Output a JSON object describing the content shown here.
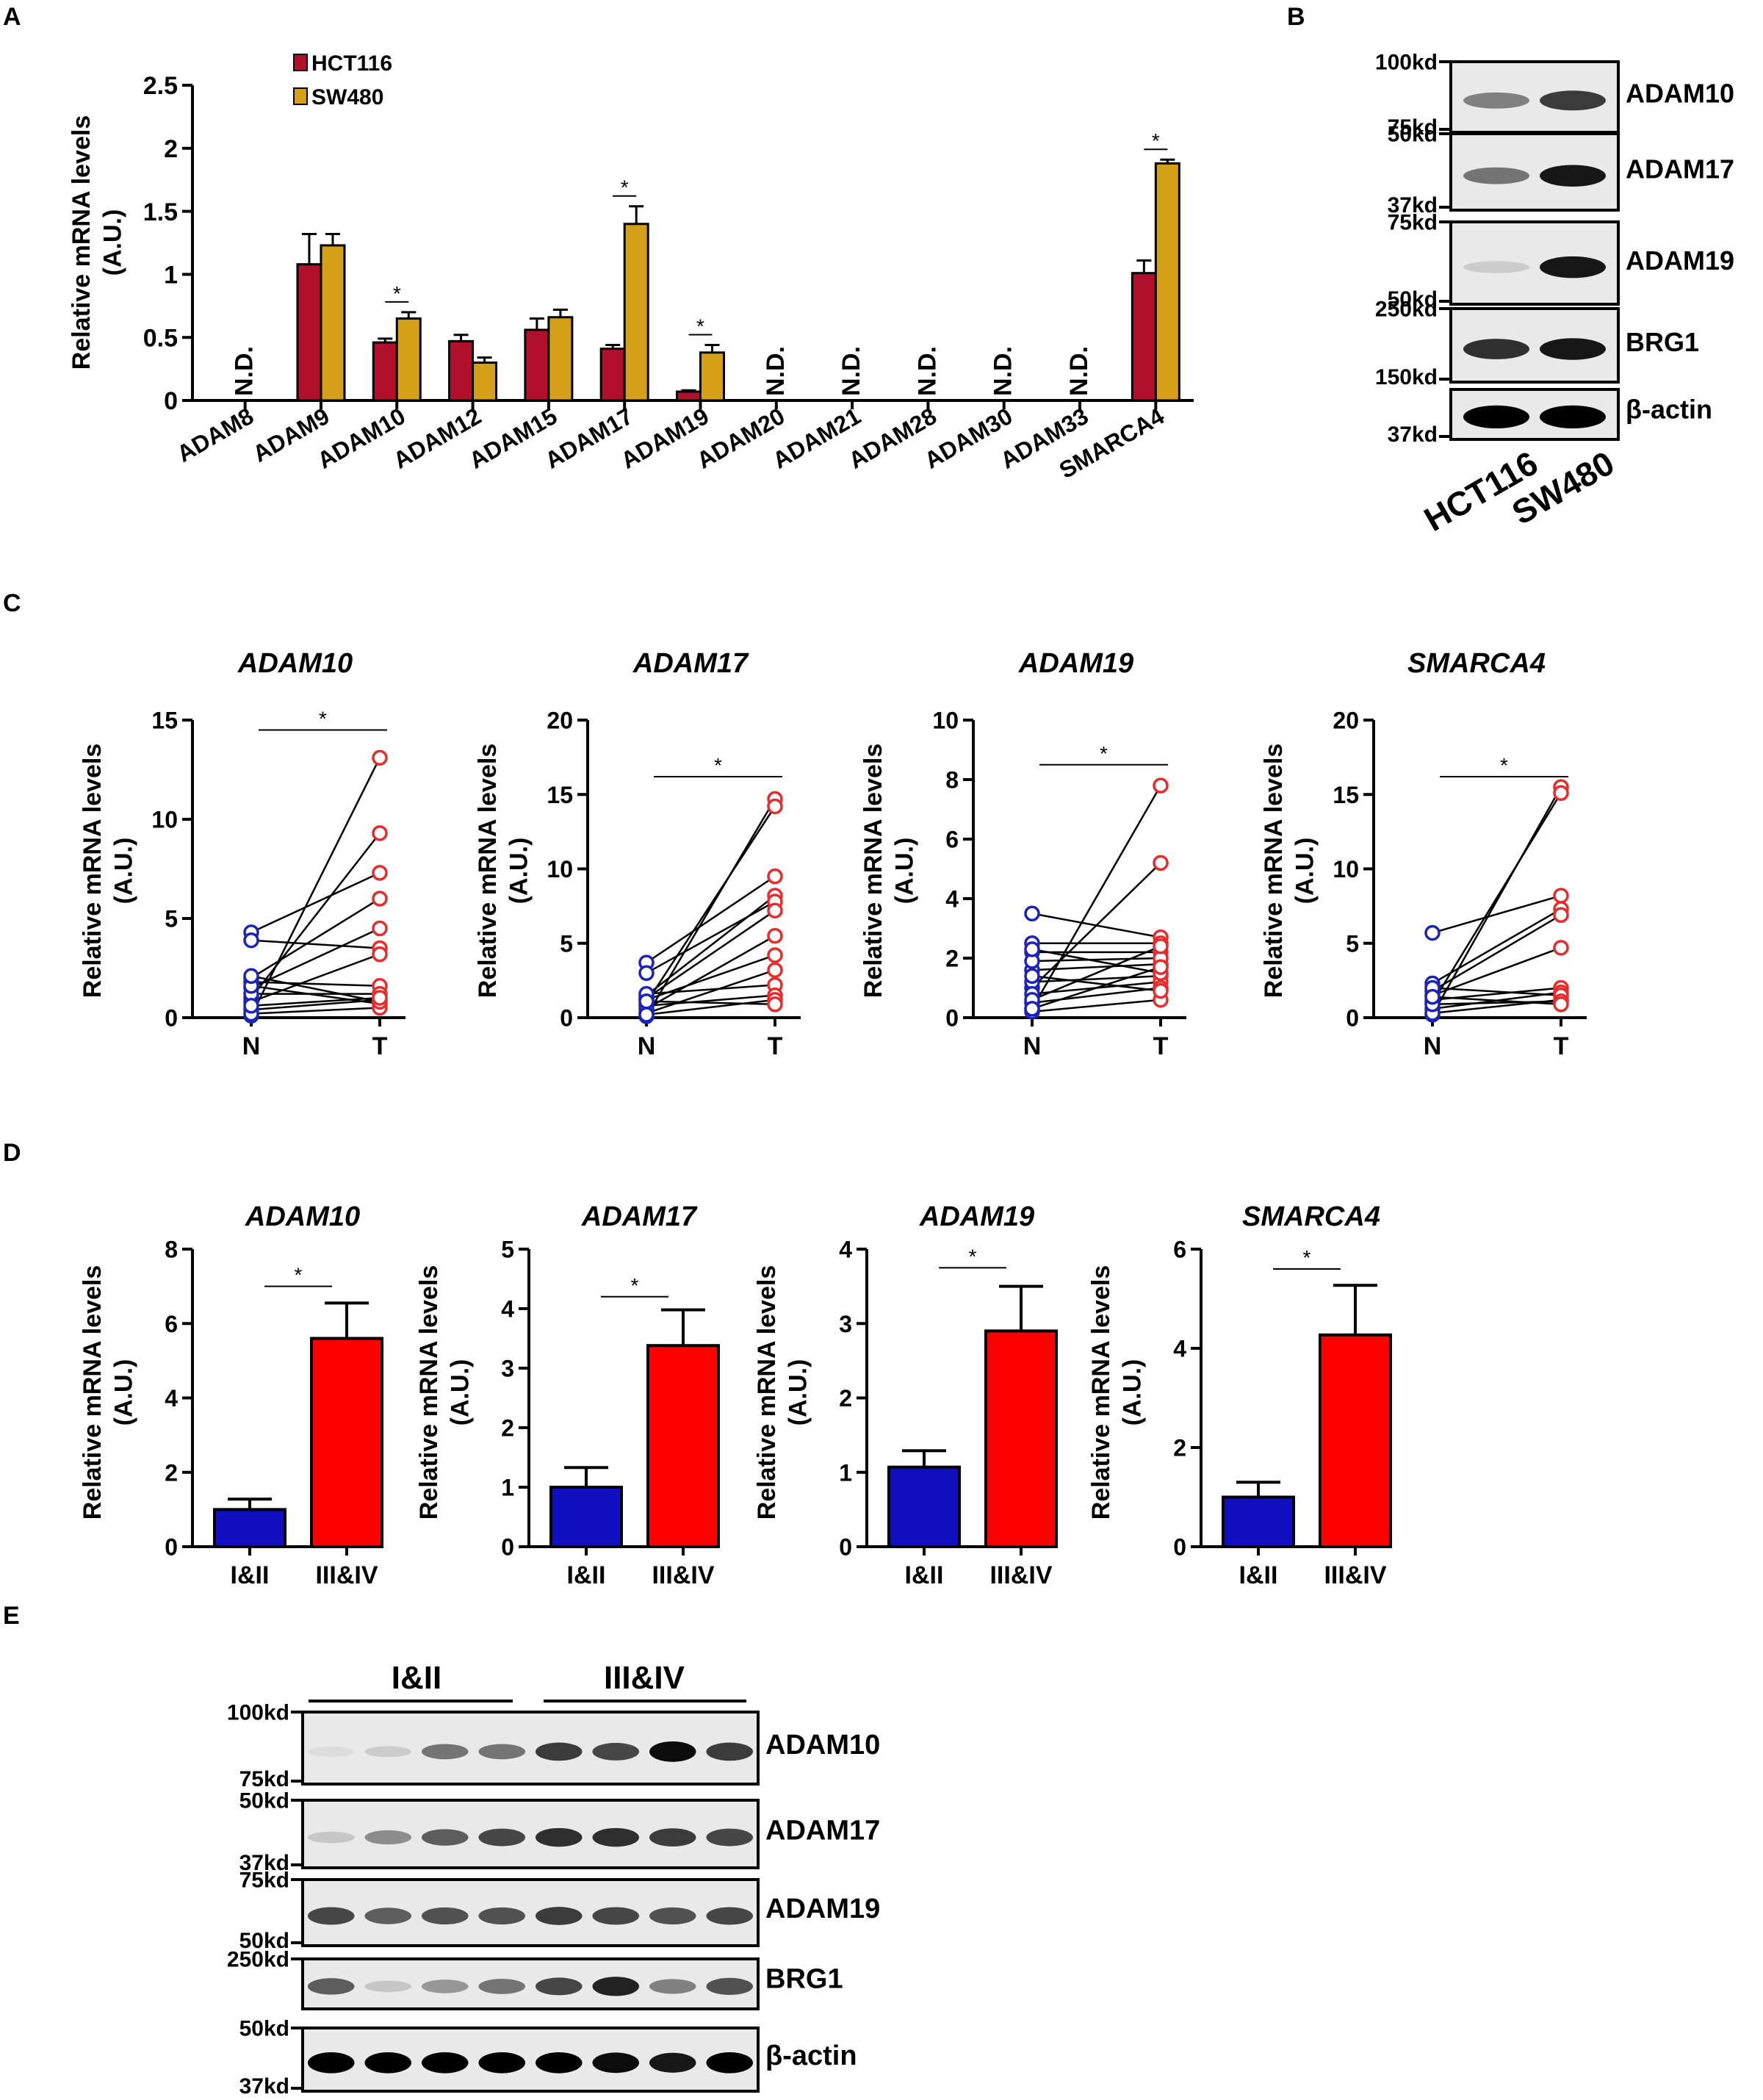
{
  "panels": {
    "A": "A",
    "B": "B",
    "C": "C",
    "D": "D",
    "E": "E"
  },
  "colors": {
    "hct116": "#b0102c",
    "sw480": "#d4a017",
    "normal": "#1c23b8",
    "tumor": "#ea2b2b",
    "blue_bar": "#1010c0",
    "red_bar": "#ff0000"
  },
  "chart_data": [
    {
      "id": "A",
      "type": "bar",
      "ylabel_line1": "Relative mRNA levels",
      "ylabel_line2": "(A.U.)",
      "ylim": [
        0,
        2.5
      ],
      "yticks": [
        0,
        0.5,
        1,
        1.5,
        2,
        2.5
      ],
      "ytick_labels": [
        "0",
        "0.5",
        "1",
        "1.5",
        "2",
        "2.5"
      ],
      "categories": [
        "ADAM8",
        "ADAM9",
        "ADAM10",
        "ADAM12",
        "ADAM15",
        "ADAM17",
        "ADAM19",
        "ADAM20",
        "ADAM21",
        "ADAM28",
        "ADAM30",
        "ADAM33",
        "SMARCA4"
      ],
      "series": [
        {
          "name": "HCT116",
          "values": [
            null,
            1.08,
            0.46,
            0.47,
            0.56,
            0.41,
            0.07,
            null,
            null,
            null,
            null,
            null,
            1.01
          ],
          "errors": [
            null,
            0.24,
            0.03,
            0.05,
            0.09,
            0.03,
            0.01,
            null,
            null,
            null,
            null,
            null,
            0.1
          ]
        },
        {
          "name": "SW480",
          "values": [
            null,
            1.23,
            0.65,
            0.3,
            0.66,
            1.4,
            0.38,
            null,
            null,
            null,
            null,
            null,
            1.88
          ],
          "errors": [
            null,
            0.09,
            0.05,
            0.04,
            0.06,
            0.14,
            0.06,
            null,
            null,
            null,
            null,
            null,
            0.03
          ]
        }
      ],
      "nd_label": "N.D.",
      "significance": [
        "ADAM10",
        "ADAM17",
        "ADAM19",
        "SMARCA4"
      ],
      "star": "*"
    },
    {
      "id": "C1",
      "type": "scatter",
      "title": "ADAM10",
      "ylabel_line1": "Relative mRNA levels",
      "ylabel_line2": "(A.U.)",
      "ylim": [
        0,
        15
      ],
      "yticks": [
        0,
        5,
        10,
        15
      ],
      "ytick_labels": [
        "0",
        "5",
        "10",
        "15"
      ],
      "categories": [
        "N",
        "T"
      ],
      "star": "*",
      "star_y": 14.5,
      "pairs": [
        [
          0.1,
          13.1
        ],
        [
          1.0,
          9.3
        ],
        [
          4.3,
          7.3
        ],
        [
          2.0,
          6.0
        ],
        [
          1.5,
          4.5
        ],
        [
          3.9,
          3.5
        ],
        [
          0.8,
          3.2
        ],
        [
          1.8,
          1.6
        ],
        [
          1.2,
          1.2
        ],
        [
          0.4,
          0.9
        ],
        [
          1.6,
          0.7
        ],
        [
          0.2,
          0.5
        ],
        [
          2.1,
          0.8
        ],
        [
          0.6,
          1.0
        ]
      ]
    },
    {
      "id": "C2",
      "type": "scatter",
      "title": "ADAM17",
      "ylabel_line1": "Relative mRNA levels",
      "ylabel_line2": "(A.U.)",
      "ylim": [
        0,
        20
      ],
      "yticks": [
        0,
        5,
        10,
        15,
        20
      ],
      "ytick_labels": [
        "0",
        "5",
        "10",
        "15",
        "20"
      ],
      "categories": [
        "N",
        "T"
      ],
      "star": "*",
      "star_y": 16.2,
      "pairs": [
        [
          0.1,
          14.7
        ],
        [
          1.0,
          14.2
        ],
        [
          3.7,
          9.5
        ],
        [
          1.5,
          8.2
        ],
        [
          3.0,
          7.8
        ],
        [
          1.3,
          7.2
        ],
        [
          0.6,
          5.5
        ],
        [
          1.2,
          4.2
        ],
        [
          0.3,
          3.2
        ],
        [
          1.6,
          2.2
        ],
        [
          0.8,
          1.5
        ],
        [
          0.2,
          1.2
        ],
        [
          1.1,
          0.9
        ]
      ]
    },
    {
      "id": "C3",
      "type": "scatter",
      "title": "ADAM19",
      "ylabel_line1": "Relative mRNA levels",
      "ylabel_line2": "(A.U.)",
      "ylim": [
        0,
        10
      ],
      "yticks": [
        0,
        2,
        4,
        6,
        8,
        10
      ],
      "ytick_labels": [
        "0",
        "2",
        "4",
        "6",
        "8",
        "10"
      ],
      "categories": [
        "N",
        "T"
      ],
      "star": "*",
      "star_y": 8.5,
      "pairs": [
        [
          0.3,
          7.8
        ],
        [
          1.0,
          5.2
        ],
        [
          3.5,
          2.7
        ],
        [
          2.5,
          2.5
        ],
        [
          2.2,
          2.2
        ],
        [
          1.6,
          1.8
        ],
        [
          1.2,
          1.4
        ],
        [
          0.8,
          1.2
        ],
        [
          0.5,
          1.0
        ],
        [
          0.2,
          0.6
        ],
        [
          1.9,
          2.0
        ],
        [
          2.3,
          1.5
        ],
        [
          0.6,
          2.4
        ],
        [
          1.4,
          0.9
        ],
        [
          0.3,
          1.7
        ]
      ]
    },
    {
      "id": "C4",
      "type": "scatter",
      "title": "SMARCA4",
      "ylabel_line1": "Relative mRNA levels",
      "ylabel_line2": "(A.U.)",
      "ylim": [
        0,
        20
      ],
      "yticks": [
        0,
        5,
        10,
        15,
        20
      ],
      "ytick_labels": [
        "0",
        "5",
        "10",
        "15",
        "20"
      ],
      "categories": [
        "N",
        "T"
      ],
      "star": "*",
      "star_y": 16.2,
      "pairs": [
        [
          0.2,
          15.5
        ],
        [
          1.0,
          15.1
        ],
        [
          5.7,
          8.2
        ],
        [
          2.3,
          7.3
        ],
        [
          1.8,
          6.9
        ],
        [
          1.5,
          4.7
        ],
        [
          1.2,
          2.0
        ],
        [
          0.6,
          1.7
        ],
        [
          0.3,
          1.2
        ],
        [
          2.0,
          1.5
        ],
        [
          0.9,
          1.1
        ],
        [
          1.4,
          0.9
        ]
      ]
    },
    {
      "id": "D1",
      "type": "bar",
      "title": "ADAM10",
      "ylabel_line1": "Relative mRNA levels",
      "ylabel_line2": "(A.U.)",
      "ylim": [
        0,
        8
      ],
      "yticks": [
        0,
        2,
        4,
        6,
        8
      ],
      "ytick_labels": [
        "0",
        "2",
        "4",
        "6",
        "8"
      ],
      "categories": [
        "I&II",
        "III&IV"
      ],
      "values": [
        1.0,
        5.6
      ],
      "errors": [
        0.28,
        0.95
      ],
      "star": "*",
      "star_y": 7.0
    },
    {
      "id": "D2",
      "type": "bar",
      "title": "ADAM17",
      "ylabel_line1": "Relative mRNA levels",
      "ylabel_line2": "(A.U.)",
      "ylim": [
        0,
        5
      ],
      "yticks": [
        0,
        1,
        2,
        3,
        4,
        5
      ],
      "ytick_labels": [
        "0",
        "1",
        "2",
        "3",
        "4",
        "5"
      ],
      "categories": [
        "I&II",
        "III&IV"
      ],
      "values": [
        1.0,
        3.38
      ],
      "errors": [
        0.33,
        0.6
      ],
      "star": "*",
      "star_y": 4.2
    },
    {
      "id": "D3",
      "type": "bar",
      "title": "ADAM19",
      "ylabel_line1": "Relative mRNA levels",
      "ylabel_line2": "(A.U.)",
      "ylim": [
        0,
        4
      ],
      "yticks": [
        0,
        1,
        2,
        3,
        4
      ],
      "ytick_labels": [
        "0",
        "1",
        "2",
        "3",
        "4"
      ],
      "categories": [
        "I&II",
        "III&IV"
      ],
      "values": [
        1.07,
        2.9
      ],
      "errors": [
        0.22,
        0.6
      ],
      "star": "*",
      "star_y": 3.75
    },
    {
      "id": "D4",
      "type": "bar",
      "title": "SMARCA4",
      "ylabel_line1": "Relative mRNA levels",
      "ylabel_line2": "(A.U.)",
      "ylim": [
        0,
        6
      ],
      "yticks": [
        0,
        2,
        4,
        6
      ],
      "ytick_labels": [
        "0",
        "2",
        "4",
        "6"
      ],
      "categories": [
        "I&II",
        "III&IV"
      ],
      "values": [
        1.0,
        4.27
      ],
      "errors": [
        0.3,
        1.0
      ],
      "star": "*",
      "star_y": 5.6
    }
  ],
  "blot_b": {
    "lanes": [
      "HCT116",
      "SW480"
    ],
    "rows": [
      {
        "protein": "ADAM10",
        "marker_top": "100kd",
        "marker_bottom": "75kd",
        "intensity": [
          0.45,
          0.75
        ]
      },
      {
        "protein": "ADAM17",
        "marker_top": "50kd",
        "marker_bottom": "37kd",
        "intensity": [
          0.5,
          0.9
        ]
      },
      {
        "protein": "ADAM19",
        "marker_top": "75kd",
        "marker_bottom": "50kd",
        "intensity": [
          0.12,
          0.9
        ]
      },
      {
        "protein": "BRG1",
        "marker_top": "250kd",
        "marker_bottom": "150kd",
        "intensity": [
          0.8,
          0.9
        ]
      },
      {
        "protein": "β-actin",
        "marker_top": "",
        "marker_bottom": "37kd",
        "intensity": [
          1.0,
          1.0
        ]
      }
    ]
  },
  "blot_e": {
    "groups": [
      "I&II",
      "III&IV"
    ],
    "rows": [
      {
        "protein": "ADAM10",
        "marker_top": "100kd",
        "marker_bottom": "75kd",
        "intensity": [
          0.05,
          0.12,
          0.5,
          0.5,
          0.75,
          0.7,
          0.95,
          0.75
        ]
      },
      {
        "protein": "ADAM17",
        "marker_top": "50kd",
        "marker_bottom": "37kd",
        "intensity": [
          0.15,
          0.4,
          0.6,
          0.7,
          0.8,
          0.8,
          0.75,
          0.7
        ]
      },
      {
        "protein": "ADAM19",
        "marker_top": "75kd",
        "marker_bottom": "50kd",
        "intensity": [
          0.7,
          0.6,
          0.65,
          0.65,
          0.75,
          0.7,
          0.65,
          0.7
        ]
      },
      {
        "protein": "BRG1",
        "marker_top": "250kd",
        "marker_bottom": "",
        "intensity": [
          0.6,
          0.15,
          0.35,
          0.5,
          0.7,
          0.85,
          0.45,
          0.65
        ]
      },
      {
        "protein": "β-actin",
        "marker_top": "50kd",
        "marker_bottom": "37kd",
        "intensity": [
          1.0,
          1.0,
          1.0,
          1.0,
          1.0,
          0.95,
          0.9,
          1.0
        ]
      }
    ]
  }
}
